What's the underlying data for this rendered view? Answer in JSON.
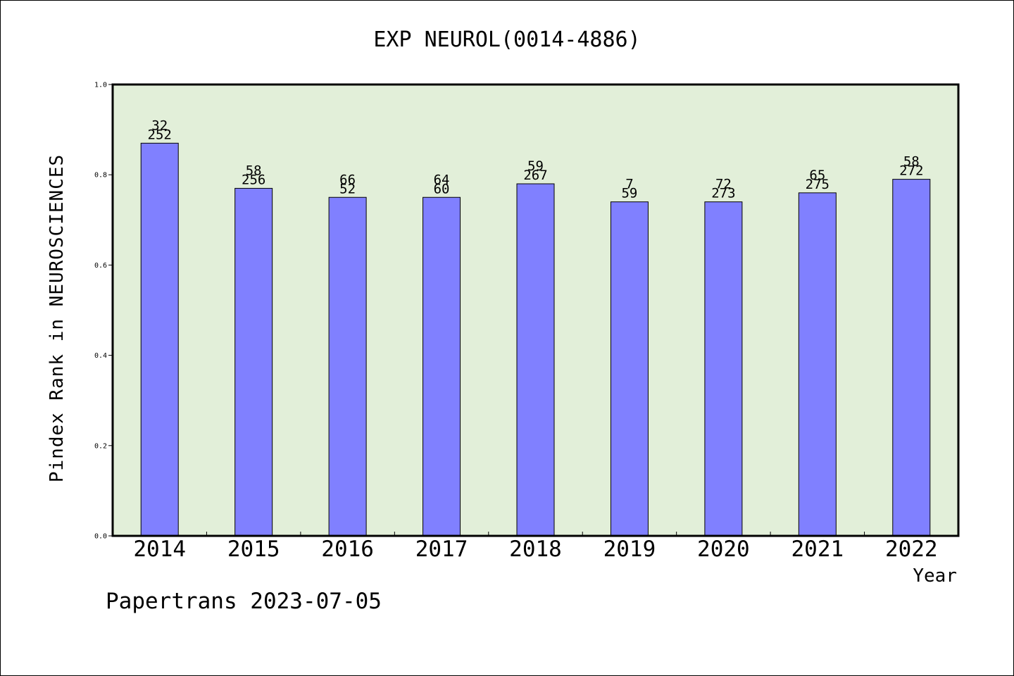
{
  "chart_data": {
    "type": "bar",
    "title": "EXP NEUROL(0014-4886)",
    "xlabel": "Year",
    "ylabel": "Pindex Rank in NEUROSCIENCES",
    "ylim": [
      0,
      1.0
    ],
    "yticks": [
      "0.0",
      "0.2",
      "0.4",
      "0.6",
      "0.8",
      "1.0"
    ],
    "categories": [
      "2014",
      "2015",
      "2016",
      "2017",
      "2018",
      "2019",
      "2020",
      "2021",
      "2022"
    ],
    "values": [
      0.87,
      0.77,
      0.75,
      0.75,
      0.78,
      0.74,
      0.74,
      0.76,
      0.79
    ],
    "labels_top": [
      "32",
      "58",
      "66",
      "64",
      "59",
      "7",
      "72",
      "65",
      "58"
    ],
    "labels_bottom": [
      "252",
      "256",
      "52",
      "60",
      "267",
      "59",
      "273",
      "275",
      "272"
    ],
    "colors": {
      "plot_bg": "#e2efd9",
      "bar": "#8080ff",
      "axis": "#000000"
    },
    "grid": false,
    "legend": "none"
  },
  "footer": "Papertrans 2023-07-05"
}
